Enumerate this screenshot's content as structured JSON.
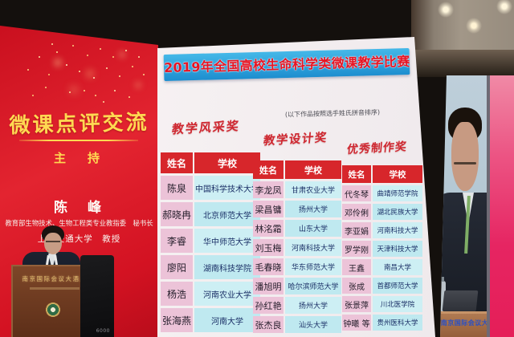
{
  "left_screen": {
    "title": "微课点评交流",
    "host_label": "主　持",
    "host_name": "陈　峰",
    "host_affiliation_line1": "教育部生物技术、生物工程类专业教指委　秘书长",
    "host_affiliation_line2": "上海交通大学　教授"
  },
  "main_screen": {
    "banner_title": "2019年全国高校生命科学类微课教学比赛",
    "sort_note": "(以下作品按照选手姓氏拼音排序)",
    "columns": {
      "name": "姓名",
      "school": "学校"
    },
    "sections": [
      {
        "award": "教学风采奖",
        "rows": [
          [
            "陈泉",
            "中国科学技术大学"
          ],
          [
            "郝晓冉",
            "北京师范大学"
          ],
          [
            "李睿",
            "华中师范大学"
          ],
          [
            "廖阳",
            "湖南科技学院"
          ],
          [
            "杨浩",
            "河南农业大学"
          ],
          [
            "张海燕",
            "河南大学"
          ]
        ]
      },
      {
        "award": "教学设计奖",
        "rows": [
          [
            "李龙凤",
            "甘肃农业大学"
          ],
          [
            "梁昌镛",
            "扬州大学"
          ],
          [
            "林洺霜",
            "山东大学"
          ],
          [
            "刘玉梅",
            "河南科技大学"
          ],
          [
            "毛春晓",
            "华东师范大学"
          ],
          [
            "潘旭明",
            "哈尔滨师范大学"
          ],
          [
            "孙红艳",
            "扬州大学"
          ],
          [
            "张杰良",
            "汕头大学"
          ]
        ]
      },
      {
        "award": "优秀制作奖",
        "rows": [
          [
            "代冬琴",
            "曲靖师范学院"
          ],
          [
            "邓伶俐",
            "湖北民族大学"
          ],
          [
            "李亚娟",
            "河南科技大学"
          ],
          [
            "罗学刚",
            "天津科技大学"
          ],
          [
            "王鑫",
            "南昌大学"
          ],
          [
            "张成",
            "首都师范大学"
          ],
          [
            "张景萍",
            "川北医学院"
          ],
          [
            "钟曦 等",
            "贵州医科大学"
          ]
        ]
      }
    ]
  },
  "right_screen": {
    "podium_sign": "南京国际会议大酒店"
  },
  "stage": {
    "left_podium_sign": "南京国际会议大酒店",
    "speaker_box_label": "6000"
  },
  "colors": {
    "banner_bg": "#2fa7dd",
    "banner_text": "#e61423",
    "award_text": "#cf2730",
    "table_header_bg": "#d7262b",
    "name_cell_bg": "#ecc3d8",
    "school_cell_bg": "#c6ecf2",
    "red_screen": "#d31222",
    "screen_yellow": "#ffd952",
    "pink_stripe": "#e62562"
  }
}
